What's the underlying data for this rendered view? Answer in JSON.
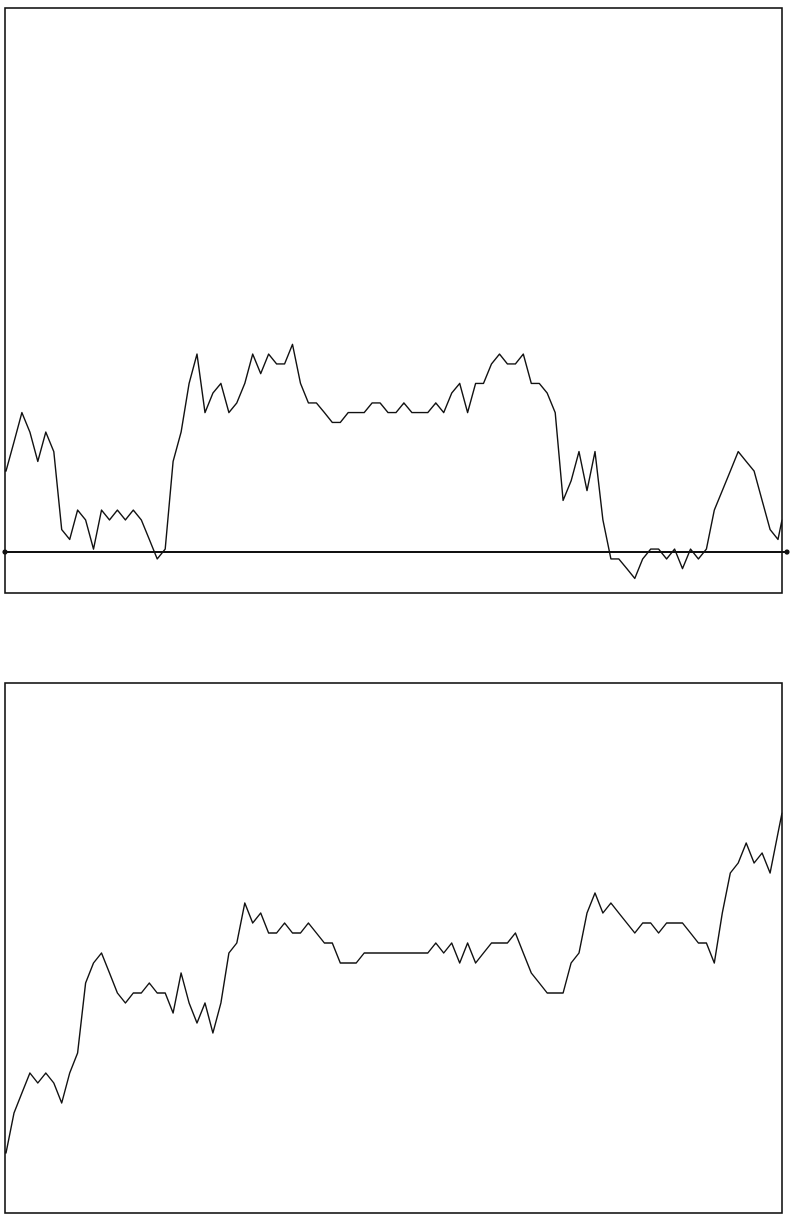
{
  "chart_data": [
    {
      "type": "line",
      "title": "",
      "xlabel": "",
      "ylabel": "",
      "grid": false,
      "legend": "none",
      "reference_line_y": 0,
      "xlim": [
        0,
        780
      ],
      "ylim": [
        -0.55,
        5.45
      ],
      "x": [
        0,
        8,
        16,
        24,
        32,
        40,
        48,
        56,
        64,
        72,
        80,
        88,
        96,
        104,
        112,
        120,
        128,
        136,
        144,
        152,
        160,
        168,
        176,
        184,
        192,
        200,
        208,
        216,
        224,
        232,
        240,
        248,
        256,
        264,
        272,
        280,
        288,
        296,
        304,
        312,
        320,
        328,
        336,
        344,
        352,
        360,
        368,
        376,
        384,
        392,
        400,
        408,
        416,
        424,
        432,
        440,
        448,
        456,
        464,
        472,
        480,
        488,
        496,
        504,
        512,
        520,
        528,
        536,
        544,
        552,
        560,
        568,
        576,
        584,
        592,
        600,
        608,
        616,
        624,
        632,
        640,
        648,
        656,
        664,
        672,
        680,
        688,
        696,
        704,
        712,
        720,
        728,
        736,
        744,
        752,
        760,
        768,
        776,
        780
      ],
      "series": [
        {
          "color": "#111111",
          "values": [
            0.7,
            1.0,
            1.3,
            1.1,
            0.8,
            1.1,
            0.9,
            0.1,
            0.0,
            0.3,
            0.2,
            -0.1,
            0.3,
            0.2,
            0.3,
            0.2,
            0.3,
            0.2,
            0.0,
            -0.2,
            -0.1,
            0.8,
            1.1,
            1.6,
            1.9,
            1.3,
            1.5,
            1.6,
            1.3,
            1.4,
            1.6,
            1.9,
            1.7,
            1.9,
            1.8,
            1.8,
            2.0,
            1.6,
            1.4,
            1.4,
            1.3,
            1.2,
            1.2,
            1.3,
            1.3,
            1.3,
            1.4,
            1.4,
            1.3,
            1.3,
            1.4,
            1.3,
            1.3,
            1.3,
            1.4,
            1.3,
            1.5,
            1.6,
            1.3,
            1.6,
            1.6,
            1.8,
            1.9,
            1.8,
            1.8,
            1.9,
            1.6,
            1.6,
            1.5,
            1.3,
            0.4,
            0.6,
            0.9,
            0.5,
            0.9,
            0.2,
            -0.2,
            -0.2,
            -0.3,
            -0.4,
            -0.2,
            -0.1,
            -0.1,
            -0.2,
            -0.1,
            -0.3,
            -0.1,
            -0.2,
            -0.1,
            0.3,
            0.5,
            0.7,
            0.9,
            0.8,
            0.7,
            0.4,
            0.1,
            0.0,
            0.2
          ]
        }
      ]
    },
    {
      "type": "line",
      "title": "",
      "xlabel": "",
      "ylabel": "",
      "grid": false,
      "legend": "none",
      "xlim": [
        0,
        780
      ],
      "ylim": [
        -0.4,
        4.9
      ],
      "x": [
        0,
        8,
        16,
        24,
        32,
        40,
        48,
        56,
        64,
        72,
        80,
        88,
        96,
        104,
        112,
        120,
        128,
        136,
        144,
        152,
        160,
        168,
        176,
        184,
        192,
        200,
        208,
        216,
        224,
        232,
        240,
        248,
        256,
        264,
        272,
        280,
        288,
        296,
        304,
        312,
        320,
        328,
        336,
        344,
        352,
        360,
        368,
        376,
        384,
        392,
        400,
        408,
        416,
        424,
        432,
        440,
        448,
        456,
        464,
        472,
        480,
        488,
        496,
        504,
        512,
        520,
        528,
        536,
        544,
        552,
        560,
        568,
        576,
        584,
        592,
        600,
        608,
        616,
        624,
        632,
        640,
        648,
        656,
        664,
        672,
        680,
        688,
        696,
        704,
        712,
        720,
        728,
        736,
        744,
        752,
        760,
        768,
        776,
        780
      ],
      "series": [
        {
          "color": "#111111",
          "values": [
            0.2,
            0.6,
            0.8,
            1.0,
            0.9,
            1.0,
            0.9,
            0.7,
            1.0,
            1.2,
            1.9,
            2.1,
            2.2,
            2.0,
            1.8,
            1.7,
            1.8,
            1.8,
            1.9,
            1.8,
            1.8,
            1.6,
            2.0,
            1.7,
            1.5,
            1.7,
            1.4,
            1.7,
            2.2,
            2.3,
            2.7,
            2.5,
            2.6,
            2.4,
            2.4,
            2.5,
            2.4,
            2.4,
            2.5,
            2.4,
            2.3,
            2.3,
            2.1,
            2.1,
            2.1,
            2.2,
            2.2,
            2.2,
            2.2,
            2.2,
            2.2,
            2.2,
            2.2,
            2.2,
            2.3,
            2.2,
            2.3,
            2.1,
            2.3,
            2.1,
            2.2,
            2.3,
            2.3,
            2.3,
            2.4,
            2.2,
            2.0,
            1.9,
            1.8,
            1.8,
            1.8,
            2.1,
            2.2,
            2.6,
            2.8,
            2.6,
            2.7,
            2.6,
            2.5,
            2.4,
            2.5,
            2.5,
            2.4,
            2.5,
            2.5,
            2.5,
            2.4,
            2.3,
            2.3,
            2.1,
            2.6,
            3.0,
            3.1,
            3.3,
            3.1,
            3.2,
            3.0,
            3.4,
            3.6
          ]
        }
      ]
    }
  ]
}
